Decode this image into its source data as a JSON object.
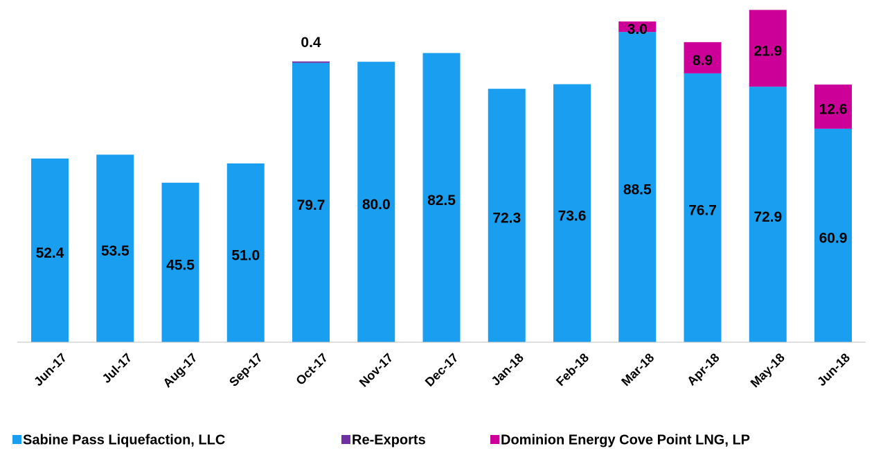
{
  "chart_data": {
    "type": "stacked_bar",
    "categories": [
      "Jun-17",
      "Jul-17",
      "Aug-17",
      "Sep-17",
      "Oct-17",
      "Nov-17",
      "Dec-17",
      "Jan-18",
      "Feb-18",
      "Mar-18",
      "Apr-18",
      "May-18",
      "Jun-18"
    ],
    "series": [
      {
        "name": "Sabine Pass Liquefaction, LLC",
        "color": "#1a9ff0",
        "values": [
          52.4,
          53.5,
          45.5,
          51,
          79.7,
          80,
          82.5,
          72.3,
          73.6,
          88.5,
          76.7,
          72.9,
          60.9
        ],
        "value_labels": [
          "52.4",
          "53.5",
          "45.5",
          "51.0",
          "79.7",
          "80.0",
          "82.5",
          "72.3",
          "73.6",
          "88.5",
          "76.7",
          "72.9",
          "60.9"
        ]
      },
      {
        "name": "Re-Exports",
        "color": "#7030a0",
        "values": [
          null,
          null,
          null,
          null,
          0.4,
          null,
          null,
          null,
          null,
          null,
          null,
          null,
          null
        ],
        "value_labels": [
          null,
          null,
          null,
          null,
          "0.4",
          null,
          null,
          null,
          null,
          null,
          null,
          null,
          null
        ]
      },
      {
        "name": "Dominion Energy Cove Point LNG, LP",
        "color": "#cc0099",
        "values": [
          null,
          null,
          null,
          null,
          null,
          null,
          null,
          null,
          null,
          3,
          8.9,
          21.9,
          12.6
        ],
        "value_labels": [
          null,
          null,
          null,
          null,
          null,
          null,
          null,
          null,
          null,
          "3.0",
          "8.9",
          "21.9",
          "12.6"
        ]
      }
    ]
  }
}
